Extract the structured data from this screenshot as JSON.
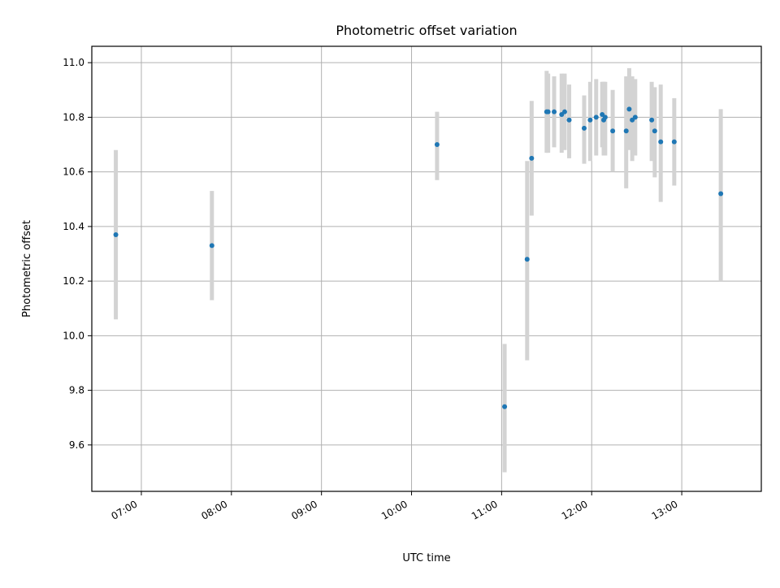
{
  "chart_data": {
    "type": "scatter",
    "title": "Photometric offset variation",
    "xlabel": "UTC time",
    "ylabel": "Photometric offset",
    "x_axis_kind": "time",
    "xlim": [
      "06:27",
      "13:53"
    ],
    "ylim": [
      9.43,
      11.06
    ],
    "xticks": [
      "07:00",
      "08:00",
      "09:00",
      "10:00",
      "11:00",
      "12:00",
      "13:00"
    ],
    "yticks": [
      "9.6",
      "9.8",
      "10.0",
      "10.2",
      "10.4",
      "10.6",
      "10.8",
      "11.0"
    ],
    "grid": true,
    "legend": "none",
    "colors": {
      "point": "#1f77b4",
      "errorbar": "#d3d3d3",
      "grid": "#b0b0b0"
    },
    "series": [
      {
        "points": [
          {
            "x": "06:43",
            "y": 10.37,
            "ymin": 10.06,
            "ymax": 10.68
          },
          {
            "x": "07:47",
            "y": 10.33,
            "ymin": 10.13,
            "ymax": 10.53
          },
          {
            "x": "10:17",
            "y": 10.7,
            "ymin": 10.57,
            "ymax": 10.82
          },
          {
            "x": "11:02",
            "y": 9.74,
            "ymin": 9.5,
            "ymax": 9.97
          },
          {
            "x": "11:17",
            "y": 10.28,
            "ymin": 9.91,
            "ymax": 10.64
          },
          {
            "x": "11:20",
            "y": 10.65,
            "ymin": 10.44,
            "ymax": 10.86
          },
          {
            "x": "11:30",
            "y": 10.82,
            "ymin": 10.67,
            "ymax": 10.97
          },
          {
            "x": "11:31",
            "y": 10.82,
            "ymin": 10.67,
            "ymax": 10.96
          },
          {
            "x": "11:35",
            "y": 10.82,
            "ymin": 10.69,
            "ymax": 10.95
          },
          {
            "x": "11:40",
            "y": 10.81,
            "ymin": 10.67,
            "ymax": 10.96
          },
          {
            "x": "11:42",
            "y": 10.82,
            "ymin": 10.68,
            "ymax": 10.96
          },
          {
            "x": "11:45",
            "y": 10.79,
            "ymin": 10.65,
            "ymax": 10.92
          },
          {
            "x": "11:55",
            "y": 10.76,
            "ymin": 10.63,
            "ymax": 10.88
          },
          {
            "x": "11:59",
            "y": 10.79,
            "ymin": 10.64,
            "ymax": 10.93
          },
          {
            "x": "12:03",
            "y": 10.8,
            "ymin": 10.66,
            "ymax": 10.94
          },
          {
            "x": "12:07",
            "y": 10.81,
            "ymin": 10.69,
            "ymax": 10.93
          },
          {
            "x": "12:08",
            "y": 10.79,
            "ymin": 10.66,
            "ymax": 10.93
          },
          {
            "x": "12:09",
            "y": 10.8,
            "ymin": 10.66,
            "ymax": 10.93
          },
          {
            "x": "12:14",
            "y": 10.75,
            "ymin": 10.6,
            "ymax": 10.9
          },
          {
            "x": "12:23",
            "y": 10.75,
            "ymin": 10.54,
            "ymax": 10.95
          },
          {
            "x": "12:25",
            "y": 10.83,
            "ymin": 10.68,
            "ymax": 10.98
          },
          {
            "x": "12:27",
            "y": 10.79,
            "ymin": 10.64,
            "ymax": 10.95
          },
          {
            "x": "12:29",
            "y": 10.8,
            "ymin": 10.66,
            "ymax": 10.94
          },
          {
            "x": "12:40",
            "y": 10.79,
            "ymin": 10.64,
            "ymax": 10.93
          },
          {
            "x": "12:42",
            "y": 10.75,
            "ymin": 10.58,
            "ymax": 10.91
          },
          {
            "x": "12:46",
            "y": 10.71,
            "ymin": 10.49,
            "ymax": 10.92
          },
          {
            "x": "12:55",
            "y": 10.71,
            "ymin": 10.55,
            "ymax": 10.87
          },
          {
            "x": "13:26",
            "y": 10.52,
            "ymin": 10.2,
            "ymax": 10.83
          }
        ]
      }
    ]
  }
}
